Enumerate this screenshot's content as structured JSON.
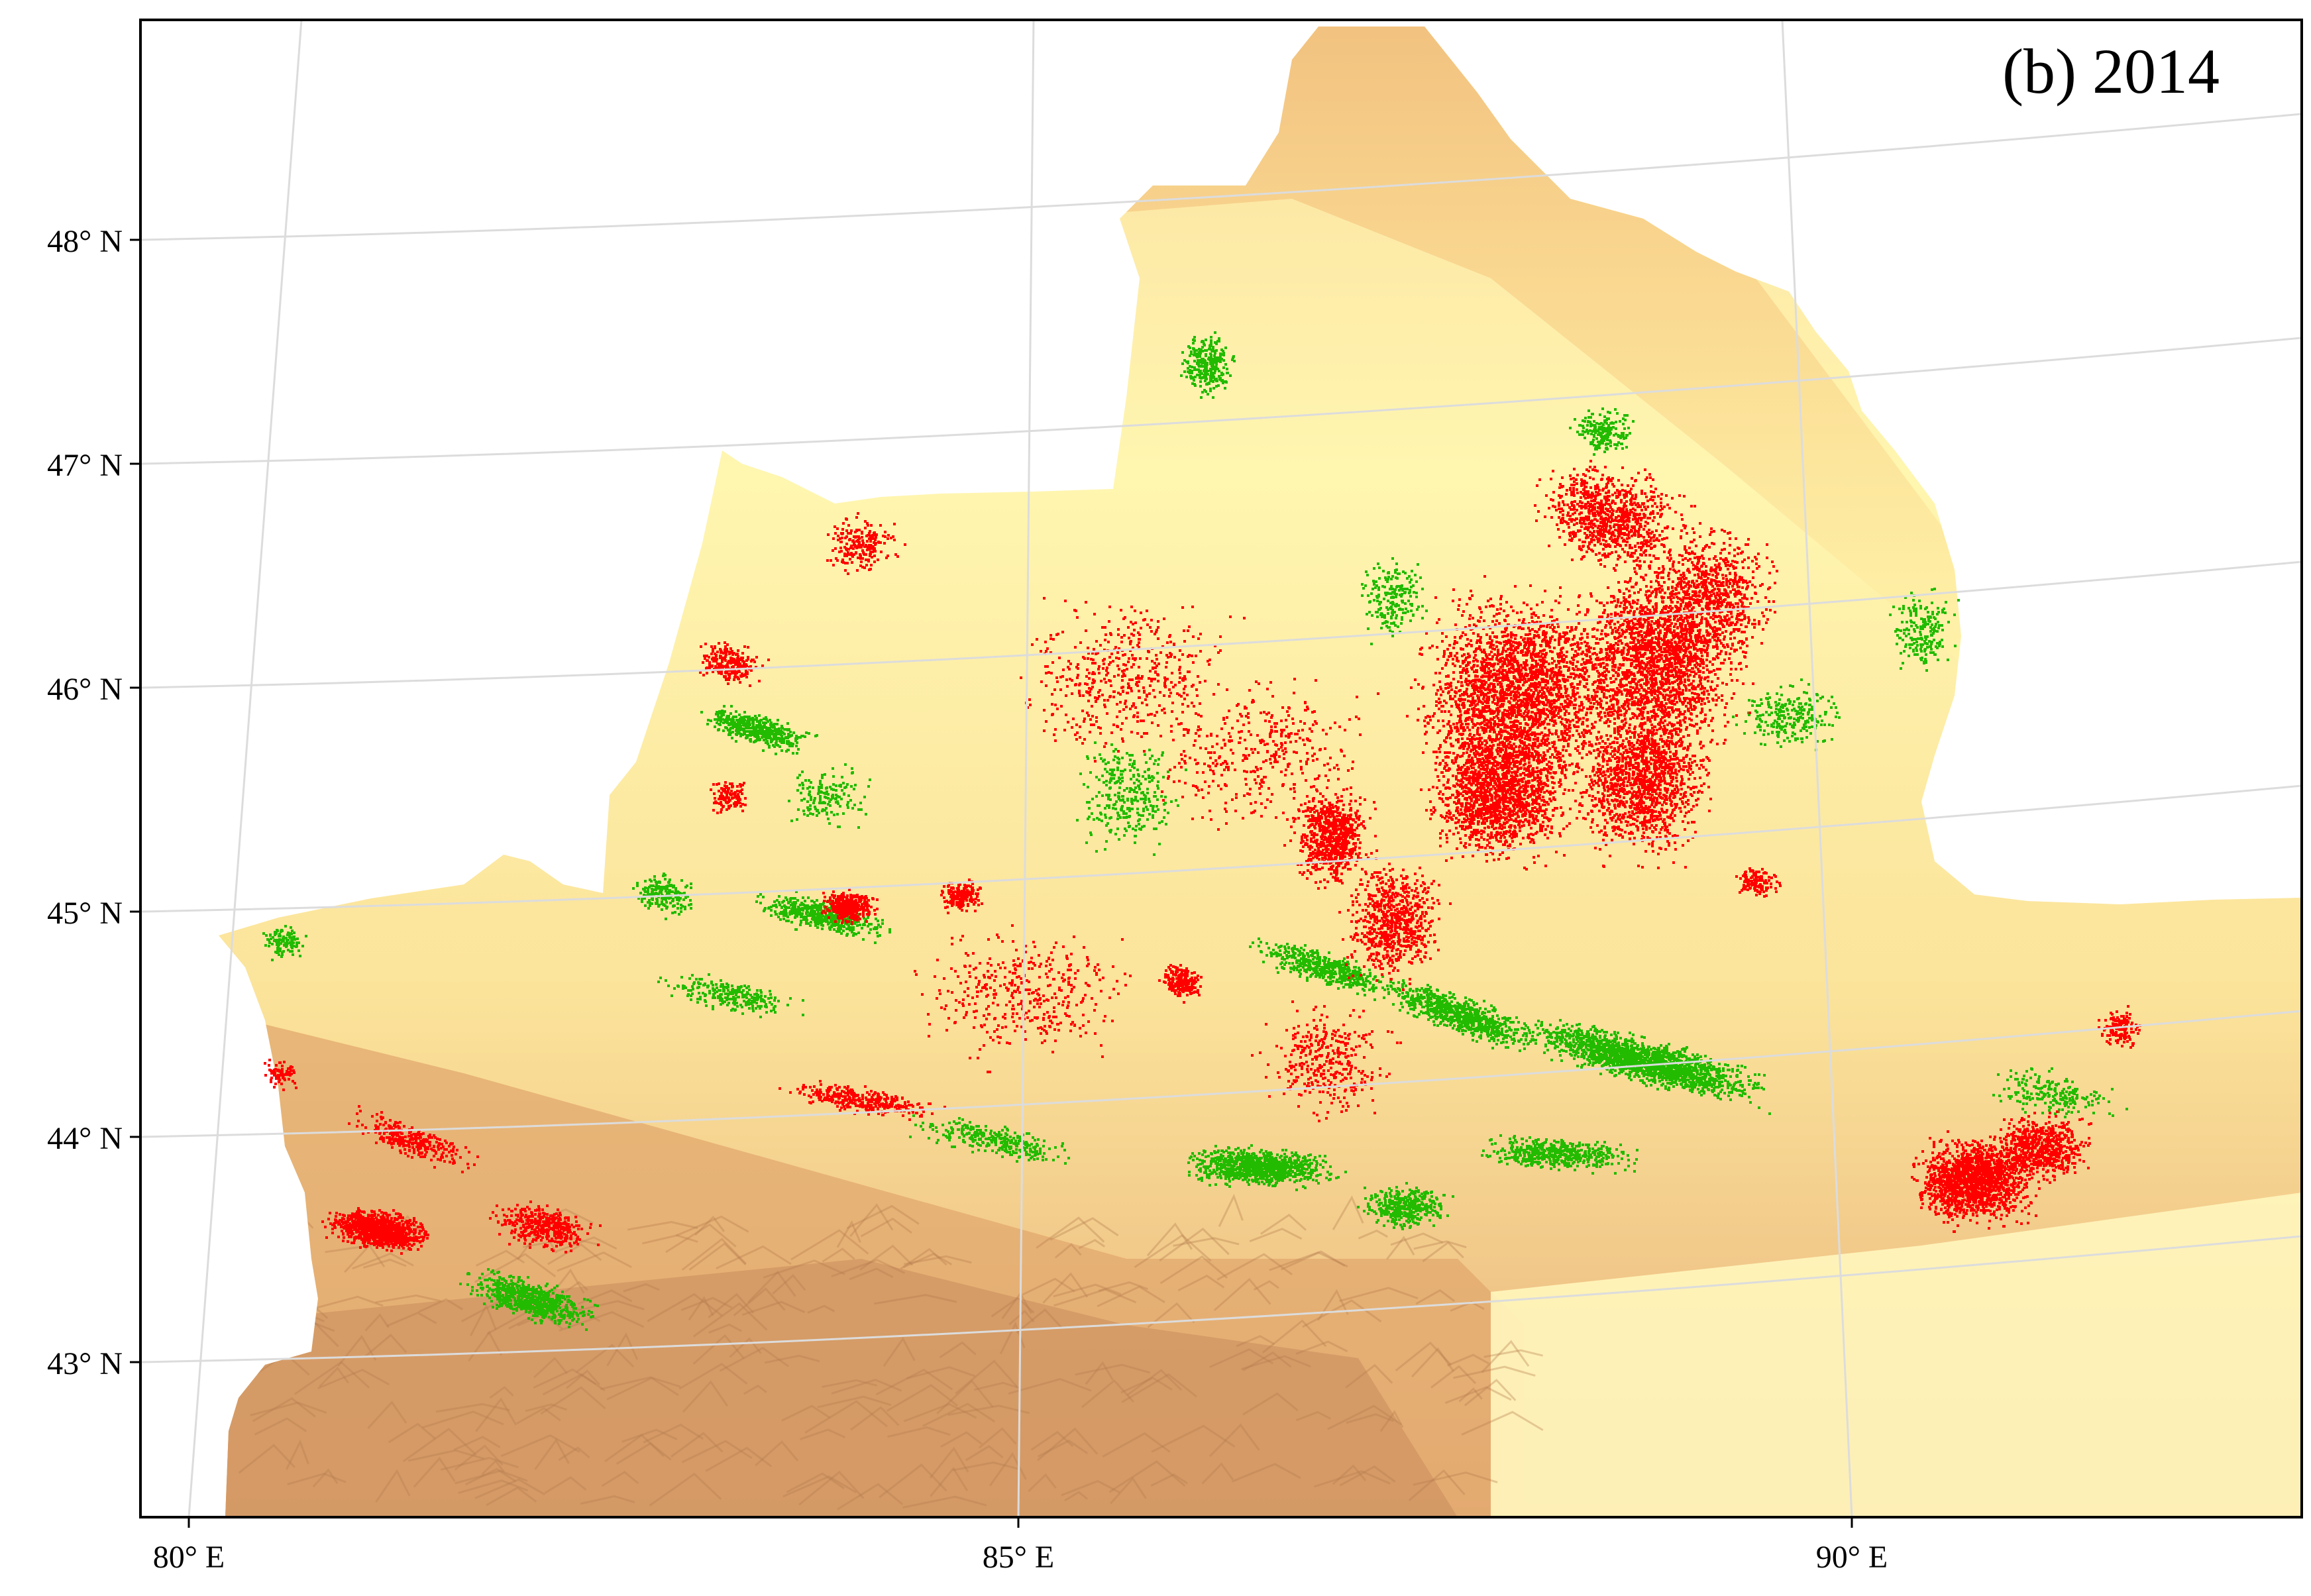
{
  "map": {
    "panel_label": "(b) 2014",
    "lat_labels": [
      "48° N",
      "47° N",
      "46° N",
      "45° N",
      "44° N",
      "43° N"
    ],
    "lon_labels": [
      "80° E",
      "85° E",
      "90° E"
    ],
    "graticule_color": "#dcdcdc",
    "frame_color": "#000000",
    "elevation_colors": {
      "low": "#fffbb0",
      "mid": "#f7d98a",
      "high": "#d9a46a",
      "ridge": "#c08a5a"
    },
    "class_colors": {
      "red_pixels": "#ff0000",
      "green_pixels": "#22bb00"
    }
  }
}
